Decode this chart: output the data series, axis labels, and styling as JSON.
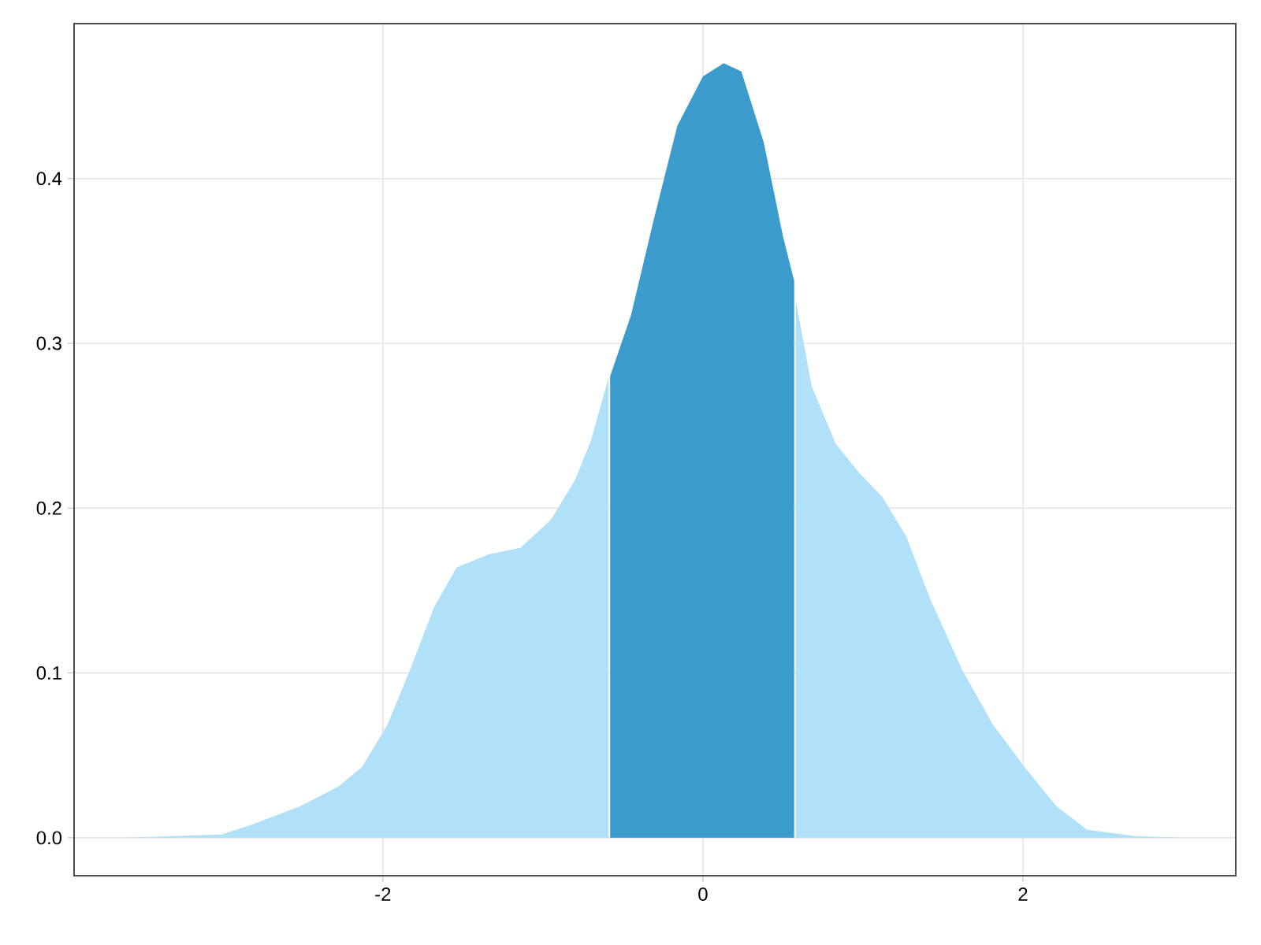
{
  "chart_data": {
    "type": "area",
    "xlim": [
      -3.93,
      3.33
    ],
    "ylim": [
      -0.023,
      0.494
    ],
    "xticks": [
      -2,
      0,
      2
    ],
    "yticks": [
      {
        "value": 0,
        "label": "0.0"
      },
      {
        "value": 0.1,
        "label": "0.1"
      },
      {
        "value": 0.2,
        "label": "0.2"
      },
      {
        "value": 0.3,
        "label": "0.3"
      },
      {
        "value": 0.4,
        "label": "0.4"
      }
    ],
    "grid": true,
    "series": [
      {
        "color": "#b0e1f8",
        "x": [
          -3.6,
          -3.01,
          -2.82,
          -2.52,
          -2.28,
          -2.13,
          -1.97,
          -1.83,
          -1.68,
          -1.54,
          -1.34,
          -1.14,
          -0.95,
          -0.8,
          -0.7,
          -0.59,
          -0.45,
          -0.31,
          -0.16,
          0,
          0.13,
          0.24,
          0.38,
          0.53,
          0.58,
          0.68,
          0.83,
          0.98,
          1.12,
          1.27,
          1.42,
          1.62,
          1.81,
          2.01,
          2.21,
          2.4,
          2.7,
          3.0
        ],
        "values": [
          0,
          0.002,
          0.008,
          0.019,
          0.031,
          0.043,
          0.069,
          0.102,
          0.14,
          0.164,
          0.172,
          0.176,
          0.193,
          0.217,
          0.241,
          0.279,
          null,
          null,
          null,
          null,
          null,
          null,
          null,
          null,
          0.326,
          0.274,
          0.239,
          0.221,
          0.207,
          0.183,
          0.145,
          0.102,
          0.069,
          0.043,
          0.019,
          0.005,
          0.001,
          0
        ]
      },
      {
        "color": "#3a9bcc",
        "x": [
          -0.58,
          -0.45,
          -0.31,
          -0.16,
          0,
          0.13,
          0.24,
          0.38,
          0.5,
          0.57
        ],
        "values": [
          0.28,
          0.317,
          0.374,
          0.432,
          0.462,
          0.47,
          0.465,
          0.422,
          0.365,
          0.338
        ]
      }
    ]
  }
}
